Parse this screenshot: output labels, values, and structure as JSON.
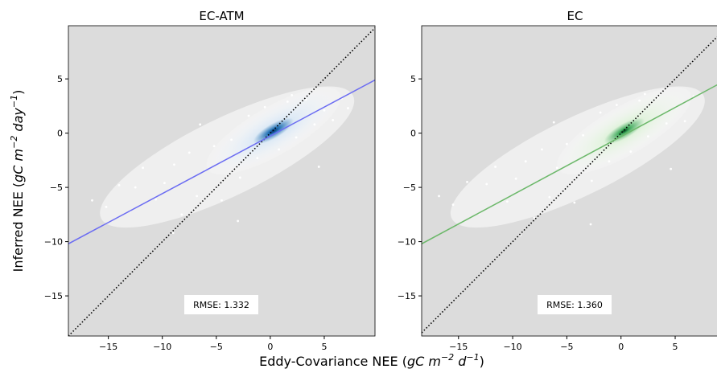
{
  "figure": {
    "xlabel": [
      "Eddy-Covariance NEE (",
      "gC m",
      "−2",
      " d",
      "−1",
      ")"
    ],
    "ylabel": [
      "Inferred NEE (",
      "gC m",
      "−2",
      " day",
      "−1",
      ")"
    ]
  },
  "chart_data": [
    {
      "type": "scatter",
      "title": "EC-ATM",
      "annotation": "RMSE: 1.332",
      "xlim": [
        -18.7,
        9.7
      ],
      "ylim": [
        -18.7,
        9.9
      ],
      "xticks": [
        {
          "value": -15,
          "label": "−15"
        },
        {
          "value": -10,
          "label": "−10"
        },
        {
          "value": -5,
          "label": "−5"
        },
        0,
        5
      ],
      "yticks": [
        {
          "value": -15,
          "label": "−15"
        },
        {
          "value": -10,
          "label": "−10"
        },
        {
          "value": -5,
          "label": "−5"
        },
        0,
        5
      ],
      "points": {
        "color": "#ffffff",
        "x": [
          -16.5,
          -15.2,
          -14,
          -13,
          -12.5,
          -11.8,
          -10.6,
          -9.8,
          -8.9,
          -8.2,
          -7.5,
          -6.8,
          -6,
          -5.2,
          -4.5,
          -3.6,
          -2.8,
          -2,
          -1.2,
          -0.5,
          0.8,
          1.6,
          2.4,
          3.3,
          4.1,
          5,
          5.8,
          6.6,
          7.2,
          -9,
          -6.5,
          -3,
          2,
          4.5
        ],
        "y": [
          -6.2,
          -6.8,
          -4.8,
          -7.2,
          -5,
          -3.2,
          -6.1,
          -4.6,
          -2.9,
          -7.5,
          -1.8,
          -5.8,
          -3.4,
          -1.2,
          -6.2,
          -0.6,
          -4.1,
          1.6,
          -2.3,
          2.4,
          -1.5,
          2.9,
          -0.4,
          3.1,
          0.8,
          2.1,
          1.2,
          3.2,
          2.3,
          -9.2,
          0.8,
          -8.1,
          3.5,
          -3.1
        ]
      },
      "series": [
        {
          "x": [
            -18.7,
            9.7
          ],
          "y": [
            -18.7,
            9.7
          ],
          "color": "#000000",
          "dash": "dotted"
        },
        {
          "x": [
            -18.7,
            9.7
          ],
          "y": [
            -10.2,
            4.9
          ],
          "color": "#6b6cf2",
          "dash": "solid"
        }
      ],
      "cloud_color": [
        "#ffffff",
        "#dbe9f6",
        "#2171b5",
        "#08306b"
      ]
    },
    {
      "type": "scatter",
      "title": "EC",
      "annotation": "RMSE: 1.360",
      "xlim": [
        -18.4,
        9.9
      ],
      "ylim": [
        -18.7,
        9.9
      ],
      "xticks": [
        {
          "value": -15,
          "label": "−15"
        },
        {
          "value": -10,
          "label": "−10"
        },
        {
          "value": -5,
          "label": "−5"
        },
        0,
        5
      ],
      "yticks": [
        {
          "value": -15,
          "label": "−15"
        },
        {
          "value": -10,
          "label": "−10"
        },
        {
          "value": -5,
          "label": "−5"
        },
        0,
        5
      ],
      "points": {
        "color": "#ffffff",
        "x": [
          -16.8,
          -15.5,
          -14.2,
          -13.1,
          -12.4,
          -11.6,
          -10.5,
          -9.7,
          -8.8,
          -8,
          -7.3,
          -6.6,
          -5.9,
          -5,
          -4.3,
          -3.5,
          -2.7,
          -1.9,
          -1.1,
          -0.4,
          0.9,
          1.7,
          2.5,
          3.4,
          4.2,
          5.1,
          5.9,
          6.7,
          -9.3,
          -6.2,
          -2.8,
          2.2,
          4.6
        ],
        "y": [
          -5.8,
          -6.6,
          -4.5,
          -7.4,
          -4.7,
          -3.1,
          -6.3,
          -4.2,
          -2.6,
          -7.8,
          -1.5,
          -5.9,
          -3.2,
          -1,
          -6.4,
          -0.2,
          -4.4,
          1.9,
          -2.6,
          2.6,
          -1.7,
          3,
          -0.3,
          3.3,
          0.9,
          2.4,
          1.1,
          3.4,
          -9.4,
          1,
          -8.4,
          3.6,
          -3.3
        ]
      },
      "series": [
        {
          "x": [
            -18.4,
            9.9
          ],
          "y": [
            -18.4,
            9.9
          ],
          "color": "#000000",
          "dash": "dotted"
        },
        {
          "x": [
            -18.4,
            9.9
          ],
          "y": [
            -10.2,
            5.0
          ],
          "color": "#6cb86a",
          "dash": "solid"
        }
      ],
      "cloud_color": [
        "#ffffff",
        "#e0f3db",
        "#41ab5d",
        "#00441b"
      ]
    }
  ]
}
